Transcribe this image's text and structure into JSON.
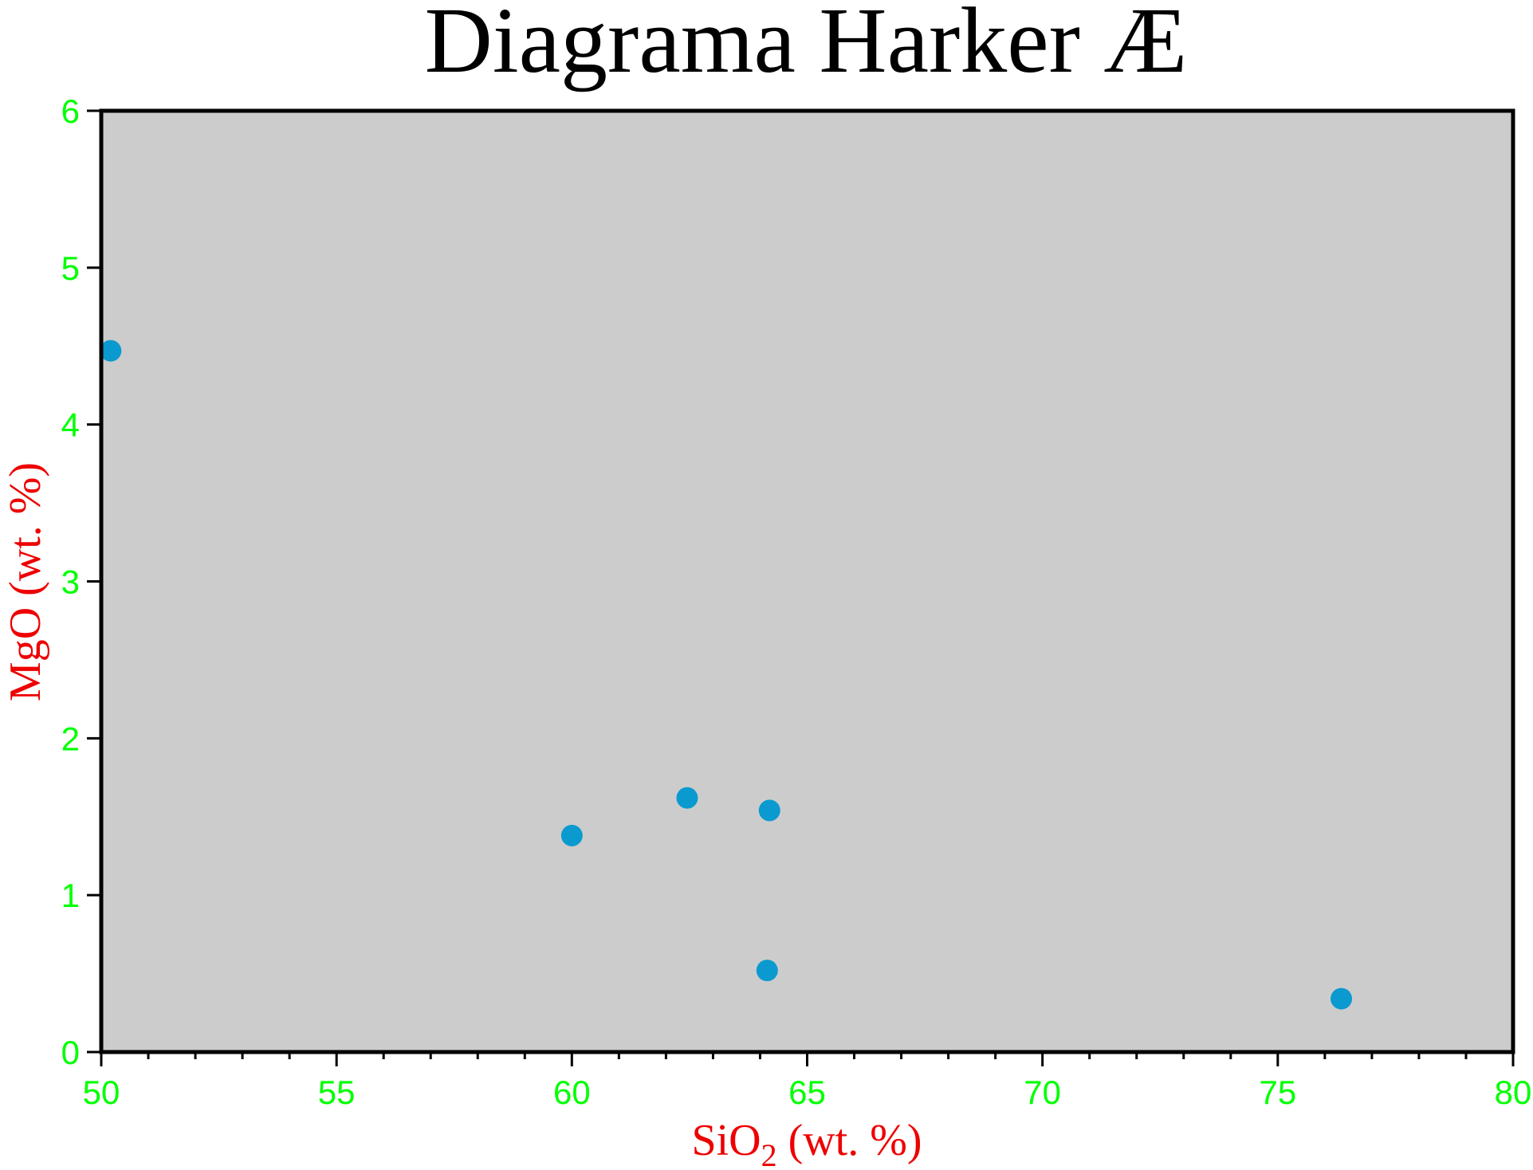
{
  "chart_data": {
    "type": "scatter",
    "title": "Diagrama Harker Æ",
    "xlabel": {
      "main": "SiO",
      "subscript": "2",
      "suffix": " (wt. %)"
    },
    "ylabel": "MgO (wt. %)",
    "xlim": [
      50,
      80
    ],
    "ylim": [
      0,
      6
    ],
    "x_major_ticks": [
      50,
      55,
      60,
      65,
      70,
      75,
      80
    ],
    "x_minor_step": 1,
    "y_major_ticks": [
      0,
      1,
      2,
      3,
      4,
      5,
      6
    ],
    "grid": false,
    "legend": "none",
    "series": [
      {
        "points": [
          {
            "x": 50.2,
            "y": 4.47
          },
          {
            "x": 60.0,
            "y": 1.38
          },
          {
            "x": 62.45,
            "y": 1.62
          },
          {
            "x": 64.2,
            "y": 1.54
          },
          {
            "x": 64.15,
            "y": 0.52
          },
          {
            "x": 76.35,
            "y": 0.34
          }
        ]
      }
    ],
    "colors": {
      "plot_background": "#cccccc",
      "frame": "#000000",
      "marker": "#0a9ad0",
      "tick_labels": "#00ff00",
      "axis_labels": "#ee0000",
      "title": "#000000"
    }
  }
}
